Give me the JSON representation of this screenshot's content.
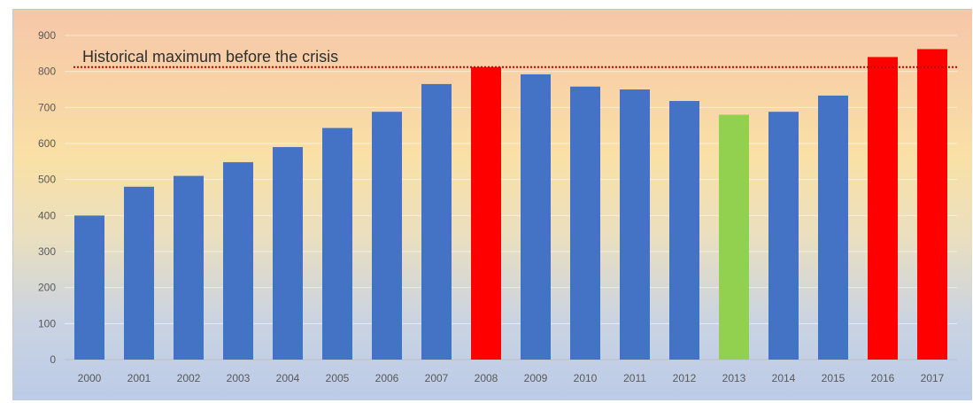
{
  "chart_data": {
    "type": "bar",
    "categories": [
      "2000",
      "2001",
      "2002",
      "2003",
      "2004",
      "2005",
      "2006",
      "2007",
      "2008",
      "2009",
      "2010",
      "2011",
      "2012",
      "2013",
      "2014",
      "2015",
      "2016",
      "2017"
    ],
    "values": [
      400,
      480,
      510,
      548,
      590,
      643,
      688,
      765,
      812,
      792,
      758,
      750,
      718,
      680,
      688,
      733,
      840,
      862
    ],
    "bar_colors": [
      "#4472c4",
      "#4472c4",
      "#4472c4",
      "#4472c4",
      "#4472c4",
      "#4472c4",
      "#4472c4",
      "#4472c4",
      "#ff0000",
      "#4472c4",
      "#4472c4",
      "#4472c4",
      "#4472c4",
      "#92d050",
      "#4472c4",
      "#4472c4",
      "#ff0000",
      "#ff0000"
    ],
    "ylim": [
      0,
      900
    ],
    "yticks": [
      0,
      100,
      200,
      300,
      400,
      500,
      600,
      700,
      800,
      900
    ],
    "grid": true,
    "reference_line": {
      "value": 812,
      "label": "Historical maximum before the crisis",
      "color": "#c00000",
      "style": "dotted"
    },
    "colors": {
      "default_bar": "#4472c4",
      "highlight_bar": "#ff0000",
      "min_bar": "#92d050"
    }
  }
}
